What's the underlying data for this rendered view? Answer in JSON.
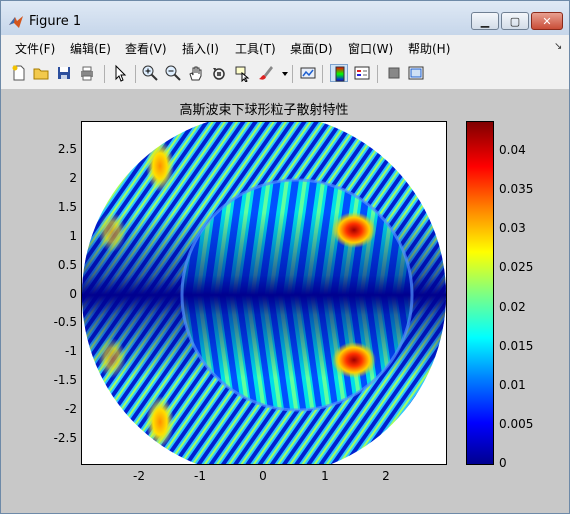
{
  "window": {
    "title": "Figure 1"
  },
  "menu": [
    "文件(F)",
    "编辑(E)",
    "查看(V)",
    "插入(I)",
    "工具(T)",
    "桌面(D)",
    "窗口(W)",
    "帮助(H)"
  ],
  "toolbar": {
    "icons": [
      "new-file-icon",
      "open-folder-icon",
      "save-icon",
      "print-icon",
      "pointer-icon",
      "zoom-in-icon",
      "zoom-out-icon",
      "pan-hand-icon",
      "rotate-3d-icon",
      "data-cursor-icon",
      "brush-icon",
      "brush-dropdown-icon",
      "link-plot-icon",
      "insert-colorbar-icon",
      "insert-legend-icon",
      "hide-plot-tools-icon",
      "show-plot-tools-icon"
    ]
  },
  "plot": {
    "title": "高斯波束下球形粒子散射特性"
  },
  "chart_data": {
    "type": "heatmap",
    "title": "高斯波束下球形粒子散射特性",
    "xlabel": "",
    "ylabel": "",
    "xlim": [
      -3,
      3
    ],
    "ylim": [
      -2.95,
      2.95
    ],
    "x_ticks": [
      "-2",
      "-1",
      "0",
      "1",
      "2"
    ],
    "y_ticks": [
      "2.5",
      "2",
      "1.5",
      "1",
      "0.5",
      "0",
      "-0.5",
      "-1",
      "-1.5",
      "-2",
      "-2.5"
    ],
    "domain": "disk of radius ~3 centered at origin with inner circle of radius ~1.9 offset toward +x",
    "colormap": "jet",
    "clim": [
      0,
      0.044
    ],
    "colorbar_ticks": [
      "0.04",
      "0.035",
      "0.03",
      "0.025",
      "0.02",
      "0.015",
      "0.01",
      "0.005",
      "0"
    ],
    "hotspots": [
      {
        "x": 1.4,
        "y": 1.05,
        "value": 0.043
      },
      {
        "x": 1.4,
        "y": -1.05,
        "value": 0.043
      },
      {
        "x": -1.6,
        "y": 2.2,
        "value": 0.032
      },
      {
        "x": -1.6,
        "y": -2.2,
        "value": 0.032
      }
    ]
  }
}
